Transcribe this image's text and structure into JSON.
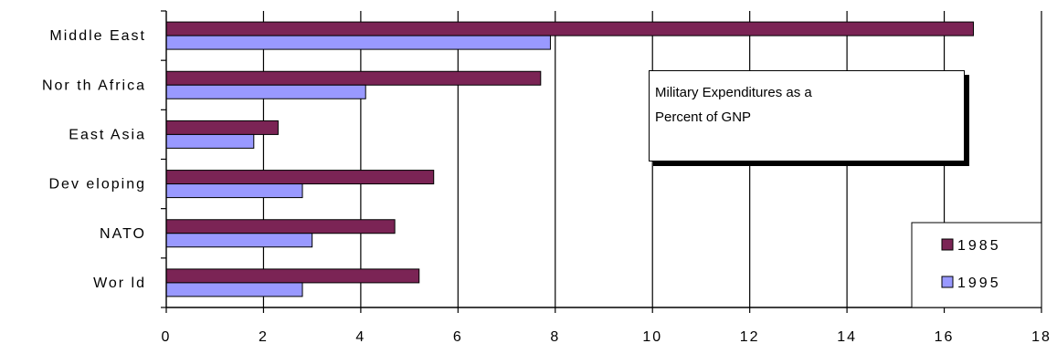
{
  "chart_data": {
    "type": "bar",
    "orientation": "horizontal",
    "title_lines": [
      "Military Expenditures as a",
      "Percent of GNP"
    ],
    "categories": [
      "Middle East",
      "North Africa",
      "East Asia",
      "Developing",
      "NATO",
      "World"
    ],
    "category_labels": [
      "Middle East",
      "Nor th Africa",
      "East Asia",
      "Dev eloping",
      "NATO",
      "Wor ld"
    ],
    "series": [
      {
        "name": "1985",
        "color": "#7b2455",
        "values": [
          16.6,
          7.7,
          2.3,
          5.5,
          4.7,
          5.2
        ]
      },
      {
        "name": "1995",
        "color": "#9999ff",
        "values": [
          7.9,
          4.1,
          1.8,
          2.8,
          3.0,
          2.8
        ]
      }
    ],
    "xlim": [
      0,
      18
    ],
    "xticks": [
      0,
      2,
      4,
      6,
      8,
      10,
      12,
      14,
      16,
      18
    ],
    "xlabel": "",
    "ylabel": "",
    "grid": "vertical",
    "legend_position": "bottom-right"
  }
}
